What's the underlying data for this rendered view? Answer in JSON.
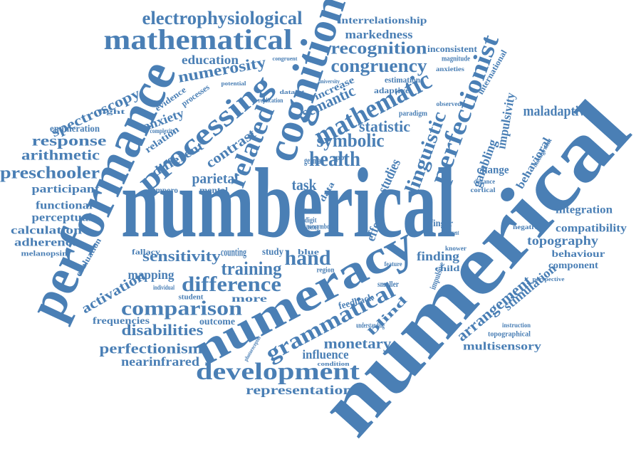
{
  "color": "#4a7fb5",
  "words": [
    "numberical",
    "numerical",
    "performance",
    "cognition",
    "numeracy",
    "mathematical",
    "electrophysiological",
    "processing",
    "related",
    "mathematic",
    "perfectionist",
    "linguistic",
    "health",
    "symbolic",
    "statistic",
    "congruency",
    "recognition",
    "markedness",
    "interrelationship",
    "difference",
    "training",
    "comparison",
    "disabilities",
    "sensitivity",
    "perfectionism",
    "nearinfrared",
    "development",
    "representation",
    "influence",
    "monetary",
    "grammatical",
    "hand",
    "arithmetic",
    "preschooler",
    "response",
    "participant",
    "spectroscopy",
    "enumeration",
    "functional",
    "perceptual",
    "calculation",
    "adherence",
    "melanopsin",
    "evaluation",
    "activation",
    "mapping",
    "frequencies",
    "education",
    "numerosity",
    "anxiety",
    "relation",
    "different",
    "contrast",
    "parietal",
    "temporo",
    "mental",
    "task",
    "semantic",
    "increase",
    "estimation",
    "adaptive",
    "change",
    "maladaptive",
    "impulsivity",
    "gambling",
    "behavioral",
    "international",
    "inconsistent",
    "magnitude",
    "integration",
    "compatibility",
    "topography",
    "behaviour",
    "component",
    "stimulation",
    "arrangement",
    "topographical",
    "multisensory",
    "finger",
    "finding",
    "child",
    "studies",
    "effect",
    "blind",
    "counting",
    "study",
    "more",
    "outcome",
    "feedback",
    "smaller",
    "fallacy",
    "individual",
    "student",
    "impulsive",
    "cortical",
    "distance",
    "negative",
    "experiment",
    "knower",
    "feature",
    "region",
    "habit",
    "digit",
    "text",
    "blue",
    "german",
    "spot",
    "data",
    "light",
    "complexity",
    "evidence",
    "processes",
    "potential",
    "congruent",
    "university",
    "dataset",
    "replication",
    "observed",
    "paradigm",
    "anxieties",
    "incongruent",
    "instruction",
    "perspective",
    "understanding",
    "condition",
    "photoreceptor",
    "nonsymbolic"
  ]
}
